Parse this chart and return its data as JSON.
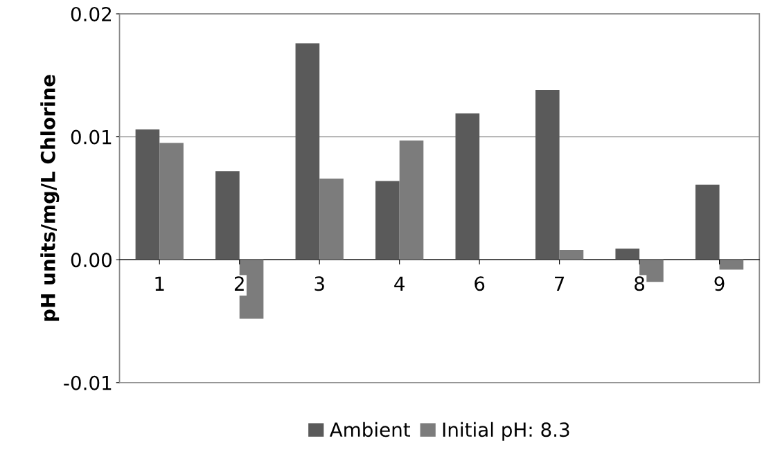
{
  "chart_data": {
    "type": "bar",
    "ylabel": "pH units/mg/L Chlorine",
    "categories": [
      "1",
      "2",
      "3",
      "4",
      "6",
      "7",
      "8",
      "9"
    ],
    "series": [
      {
        "name": "Ambient",
        "color": "#5a5a5a",
        "values": [
          0.0106,
          0.0072,
          0.0176,
          0.0064,
          0.0119,
          0.0138,
          0.0009,
          0.0061
        ]
      },
      {
        "name": "Initial pH: 8.3",
        "color": "#7c7c7c",
        "values": [
          0.0095,
          -0.0048,
          0.0066,
          0.0097,
          null,
          0.0008,
          -0.0018,
          -0.0008
        ]
      }
    ],
    "ylim": [
      -0.01,
      0.02
    ],
    "yticks": [
      {
        "value": -0.01,
        "label": "-0.01"
      },
      {
        "value": 0.0,
        "label": "0.00"
      },
      {
        "value": 0.01,
        "label": "0.01"
      },
      {
        "value": 0.02,
        "label": "0.02"
      }
    ],
    "grid": "y",
    "legend": "bottom"
  }
}
